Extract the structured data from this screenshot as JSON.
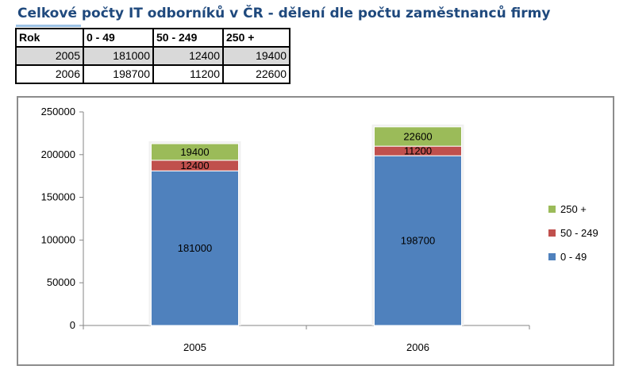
{
  "page": {
    "title": "Celkové počty IT odborníků v ČR - dělení dle počtu zaměstnanců firmy"
  },
  "table": {
    "headers": [
      "Rok",
      "0 - 49",
      "50 - 249",
      "250 +"
    ],
    "rows": [
      [
        "2005",
        "181000",
        "12400",
        "19400"
      ],
      [
        "2006",
        "198700",
        "11200",
        "22600"
      ]
    ]
  },
  "chart_data": {
    "type": "bar",
    "stacked": true,
    "categories": [
      "2005",
      "2006"
    ],
    "series": [
      {
        "name": "0 - 49",
        "values": [
          181000,
          198700
        ],
        "color": "#4f81bd"
      },
      {
        "name": "50 - 249",
        "values": [
          12400,
          11200
        ],
        "color": "#c0504d"
      },
      {
        "name": "250 +",
        "values": [
          19400,
          22600
        ],
        "color": "#9bbb59"
      }
    ],
    "yticks": [
      0,
      50000,
      100000,
      150000,
      200000,
      250000
    ],
    "ylim": [
      0,
      250000
    ],
    "legend_position": "right",
    "data_labels": true,
    "grid": false
  }
}
